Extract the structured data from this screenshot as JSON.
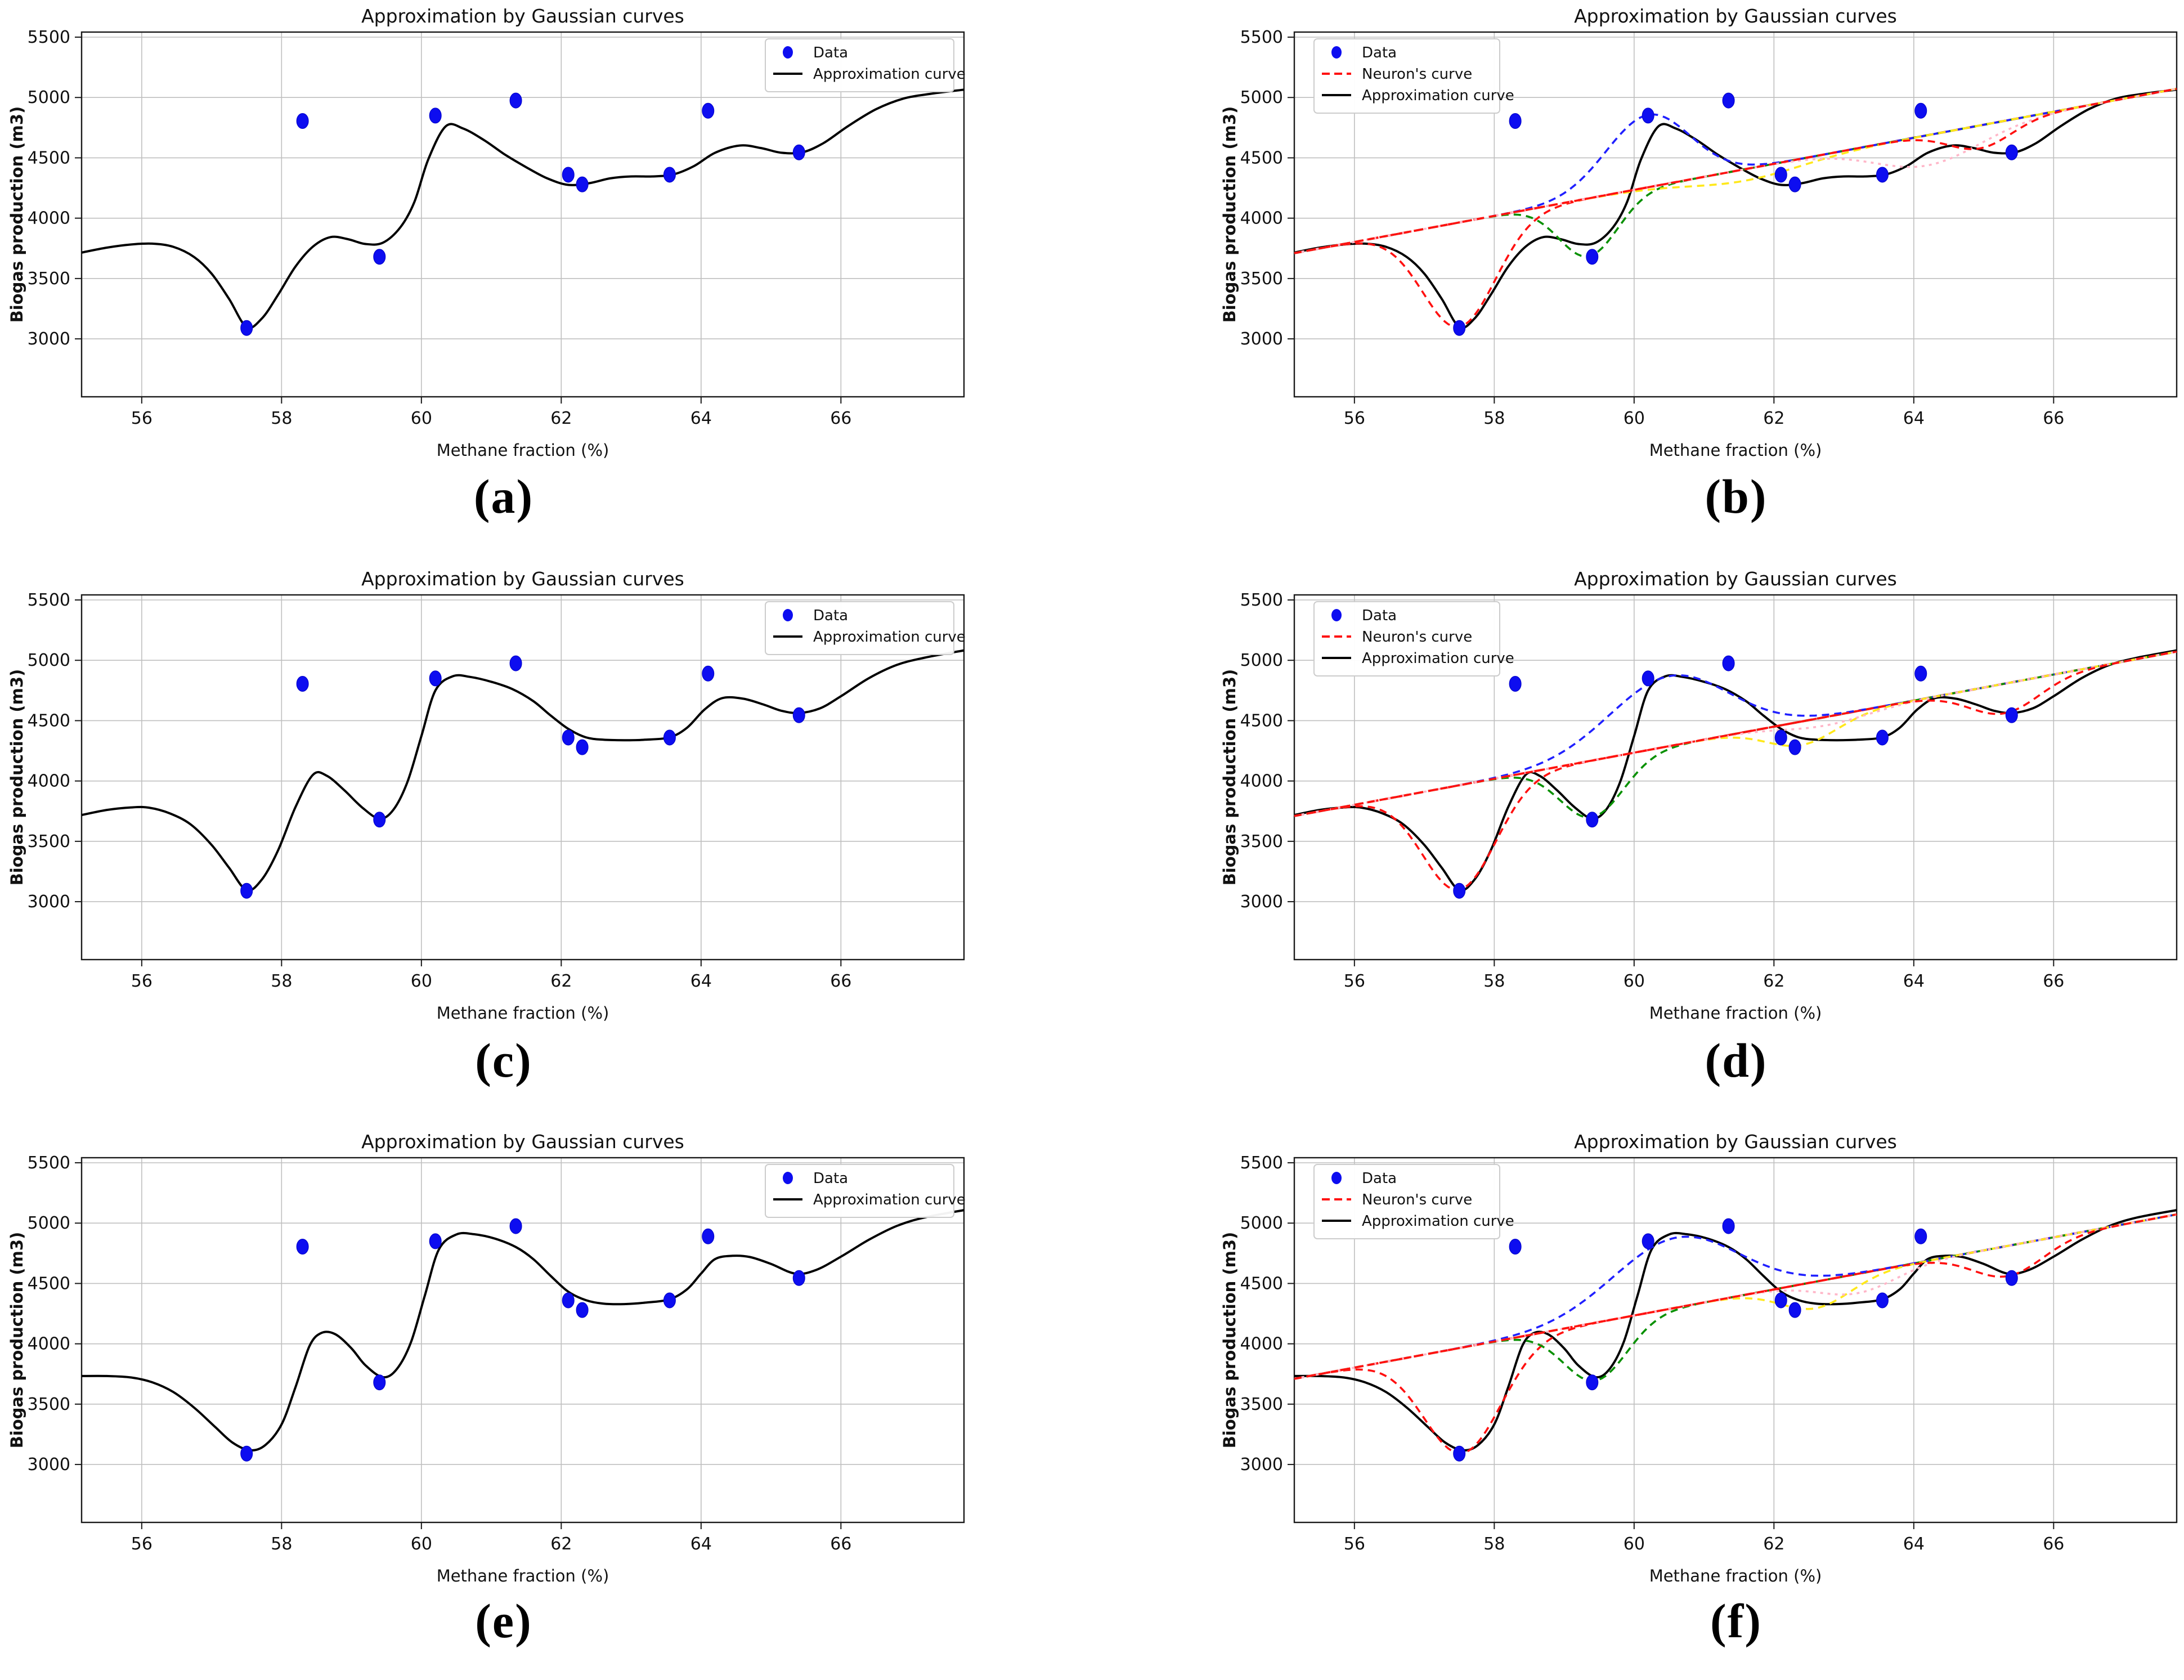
{
  "page": {
    "background": "#ffffff"
  },
  "captions": {
    "a": "(a)",
    "b": "(b)",
    "c": "(c)",
    "d": "(d)",
    "e": "(e)",
    "f": "(f)"
  },
  "styles": {
    "data_point_color": "#0d0df0",
    "approx_color": "#000000",
    "neuron_color": "#ff1010",
    "grid_color": "#bfbfbf",
    "frame_color": "#1a1a1a",
    "legend_border": "#cccccc",
    "legend_bg": "#ffffff",
    "component_colors": {
      "red": "#ff1010",
      "green": "#089000",
      "blue": "#2020ff",
      "yellow": "#ffe81a",
      "pink": "#ffb6c8"
    }
  },
  "chart_data": {
    "type": "line",
    "title": "Approximation by Gaussian curves",
    "xlabel": "Methane fraction (%)",
    "ylabel": "Biogas production (m3)",
    "xlim": [
      55.14,
      67.76
    ],
    "ylim": [
      2520,
      5542
    ],
    "xticks": [
      56,
      58,
      60,
      62,
      64,
      66
    ],
    "yticks": [
      3000,
      3500,
      4000,
      4500,
      5000,
      5500
    ],
    "grid": true,
    "data_points": [
      [
        57.5,
        3090
      ],
      [
        58.3,
        4805
      ],
      [
        59.4,
        3680
      ],
      [
        60.2,
        4850
      ],
      [
        61.35,
        4975
      ],
      [
        62.1,
        4360
      ],
      [
        62.3,
        4280
      ],
      [
        63.55,
        4360
      ],
      [
        64.1,
        4890
      ],
      [
        65.4,
        4545
      ]
    ],
    "legend_labels": {
      "data": "Data",
      "neuron": "Neuron's curve",
      "approx": "Approximation curve"
    },
    "neuron_line": [
      [
        55.14,
        3710
      ],
      [
        67.76,
        5072
      ]
    ],
    "curves": {
      "A": [
        [
          55.14,
          3715
        ],
        [
          55.5,
          3756
        ],
        [
          55.85,
          3782
        ],
        [
          56.15,
          3789
        ],
        [
          56.45,
          3763
        ],
        [
          56.75,
          3678
        ],
        [
          57.0,
          3540
        ],
        [
          57.25,
          3330
        ],
        [
          57.5,
          3098
        ],
        [
          57.72,
          3170
        ],
        [
          57.95,
          3365
        ],
        [
          58.2,
          3600
        ],
        [
          58.45,
          3765
        ],
        [
          58.7,
          3843
        ],
        [
          58.95,
          3826
        ],
        [
          59.2,
          3786
        ],
        [
          59.45,
          3797
        ],
        [
          59.7,
          3925
        ],
        [
          59.9,
          4135
        ],
        [
          60.1,
          4490
        ],
        [
          60.35,
          4762
        ],
        [
          60.6,
          4742
        ],
        [
          60.9,
          4645
        ],
        [
          61.2,
          4525
        ],
        [
          61.5,
          4422
        ],
        [
          61.8,
          4330
        ],
        [
          62.1,
          4276
        ],
        [
          62.4,
          4290
        ],
        [
          62.7,
          4330
        ],
        [
          63.0,
          4346
        ],
        [
          63.3,
          4346
        ],
        [
          63.6,
          4362
        ],
        [
          63.9,
          4432
        ],
        [
          64.2,
          4542
        ],
        [
          64.55,
          4602
        ],
        [
          64.85,
          4582
        ],
        [
          65.15,
          4542
        ],
        [
          65.45,
          4546
        ],
        [
          65.75,
          4622
        ],
        [
          66.1,
          4762
        ],
        [
          66.5,
          4902
        ],
        [
          66.9,
          4992
        ],
        [
          67.3,
          5032
        ],
        [
          67.76,
          5065
        ]
      ],
      "C": [
        [
          55.14,
          3718
        ],
        [
          55.5,
          3760
        ],
        [
          55.85,
          3781
        ],
        [
          56.1,
          3779
        ],
        [
          56.4,
          3732
        ],
        [
          56.7,
          3640
        ],
        [
          57.0,
          3470
        ],
        [
          57.25,
          3280
        ],
        [
          57.5,
          3096
        ],
        [
          57.72,
          3185
        ],
        [
          57.95,
          3425
        ],
        [
          58.2,
          3785
        ],
        [
          58.45,
          4052
        ],
        [
          58.65,
          4042
        ],
        [
          58.9,
          3922
        ],
        [
          59.15,
          3782
        ],
        [
          59.4,
          3688
        ],
        [
          59.6,
          3762
        ],
        [
          59.8,
          3992
        ],
        [
          60.0,
          4372
        ],
        [
          60.2,
          4750
        ],
        [
          60.45,
          4868
        ],
        [
          60.7,
          4862
        ],
        [
          61.0,
          4822
        ],
        [
          61.3,
          4762
        ],
        [
          61.6,
          4662
        ],
        [
          61.85,
          4542
        ],
        [
          62.1,
          4432
        ],
        [
          62.35,
          4362
        ],
        [
          62.6,
          4342
        ],
        [
          62.9,
          4338
        ],
        [
          63.2,
          4342
        ],
        [
          63.55,
          4362
        ],
        [
          63.8,
          4442
        ],
        [
          64.05,
          4592
        ],
        [
          64.3,
          4686
        ],
        [
          64.6,
          4682
        ],
        [
          64.9,
          4632
        ],
        [
          65.15,
          4582
        ],
        [
          65.4,
          4563
        ],
        [
          65.7,
          4602
        ],
        [
          66.0,
          4702
        ],
        [
          66.4,
          4852
        ],
        [
          66.8,
          4962
        ],
        [
          67.2,
          5022
        ],
        [
          67.76,
          5082
        ]
      ],
      "E": [
        [
          55.14,
          3733
        ],
        [
          55.5,
          3733
        ],
        [
          55.85,
          3721
        ],
        [
          56.15,
          3681
        ],
        [
          56.45,
          3601
        ],
        [
          56.75,
          3471
        ],
        [
          57.05,
          3311
        ],
        [
          57.3,
          3181
        ],
        [
          57.55,
          3118
        ],
        [
          57.77,
          3162
        ],
        [
          58.0,
          3332
        ],
        [
          58.2,
          3642
        ],
        [
          58.4,
          3982
        ],
        [
          58.57,
          4090
        ],
        [
          58.77,
          4079
        ],
        [
          59.0,
          3962
        ],
        [
          59.2,
          3822
        ],
        [
          59.45,
          3723
        ],
        [
          59.65,
          3792
        ],
        [
          59.85,
          4012
        ],
        [
          60.05,
          4402
        ],
        [
          60.25,
          4782
        ],
        [
          60.5,
          4906
        ],
        [
          60.75,
          4908
        ],
        [
          61.05,
          4872
        ],
        [
          61.35,
          4802
        ],
        [
          61.6,
          4702
        ],
        [
          61.85,
          4562
        ],
        [
          62.1,
          4432
        ],
        [
          62.35,
          4362
        ],
        [
          62.6,
          4333
        ],
        [
          62.9,
          4329
        ],
        [
          63.2,
          4341
        ],
        [
          63.55,
          4369
        ],
        [
          63.8,
          4452
        ],
        [
          64.0,
          4582
        ],
        [
          64.2,
          4702
        ],
        [
          64.45,
          4729
        ],
        [
          64.7,
          4719
        ],
        [
          65.0,
          4662
        ],
        [
          65.35,
          4581
        ],
        [
          65.65,
          4613
        ],
        [
          66.0,
          4722
        ],
        [
          66.4,
          4862
        ],
        [
          66.8,
          4977
        ],
        [
          67.2,
          5047
        ],
        [
          67.76,
          5108
        ]
      ]
    },
    "subplots": [
      {
        "id": "a",
        "curve": "A",
        "legend_loc": "upper-right",
        "show_neuron": false,
        "components": []
      },
      {
        "id": "b",
        "curve": "A",
        "legend_loc": "upper-left",
        "show_neuron": true,
        "components": [
          {
            "color": "red",
            "center": 57.5,
            "amplitude": -865,
            "sigma": 0.52
          },
          {
            "color": "green",
            "center": 59.35,
            "amplitude": -480,
            "sigma": 0.42
          },
          {
            "color": "blue",
            "center": 60.2,
            "amplitude": 600,
            "sigma": 0.6
          },
          {
            "color": "yellow",
            "center": 61.6,
            "amplitude": -95,
            "sigma": 0.8
          },
          {
            "color": "pink",
            "center": 64.2,
            "amplitude": -250,
            "sigma": 0.75
          },
          {
            "color": "red",
            "center": 64.95,
            "amplitude": -190,
            "sigma": 0.45
          }
        ]
      },
      {
        "id": "c",
        "curve": "C",
        "legend_loc": "upper-right",
        "show_neuron": false,
        "components": []
      },
      {
        "id": "d",
        "curve": "C",
        "legend_loc": "upper-left",
        "show_neuron": true,
        "components": [
          {
            "color": "red",
            "center": 57.5,
            "amplitude": -865,
            "sigma": 0.52
          },
          {
            "color": "green",
            "center": 59.4,
            "amplitude": -470,
            "sigma": 0.45
          },
          {
            "color": "blue",
            "center": 60.5,
            "amplitude": 580,
            "sigma": 0.85
          },
          {
            "color": "yellow",
            "center": 62.4,
            "amplitude": -195,
            "sigma": 0.5
          },
          {
            "color": "pink",
            "center": 62.75,
            "amplitude": -70,
            "sigma": 0.6
          },
          {
            "color": "red",
            "center": 65.3,
            "amplitude": -245,
            "sigma": 0.5
          }
        ]
      },
      {
        "id": "e",
        "curve": "E",
        "legend_loc": "upper-right",
        "show_neuron": false,
        "components": []
      },
      {
        "id": "f",
        "curve": "E",
        "legend_loc": "upper-left",
        "show_neuron": true,
        "components": [
          {
            "color": "red",
            "center": 57.55,
            "amplitude": -875,
            "sigma": 0.55
          },
          {
            "color": "green",
            "center": 59.45,
            "amplitude": -480,
            "sigma": 0.45
          },
          {
            "color": "blue",
            "center": 60.6,
            "amplitude": 580,
            "sigma": 0.9
          },
          {
            "color": "yellow",
            "center": 62.6,
            "amplitude": -220,
            "sigma": 0.5
          },
          {
            "color": "pink",
            "center": 63.2,
            "amplitude": -160,
            "sigma": 0.55
          },
          {
            "color": "red",
            "center": 65.35,
            "amplitude": -250,
            "sigma": 0.5
          }
        ]
      }
    ]
  }
}
